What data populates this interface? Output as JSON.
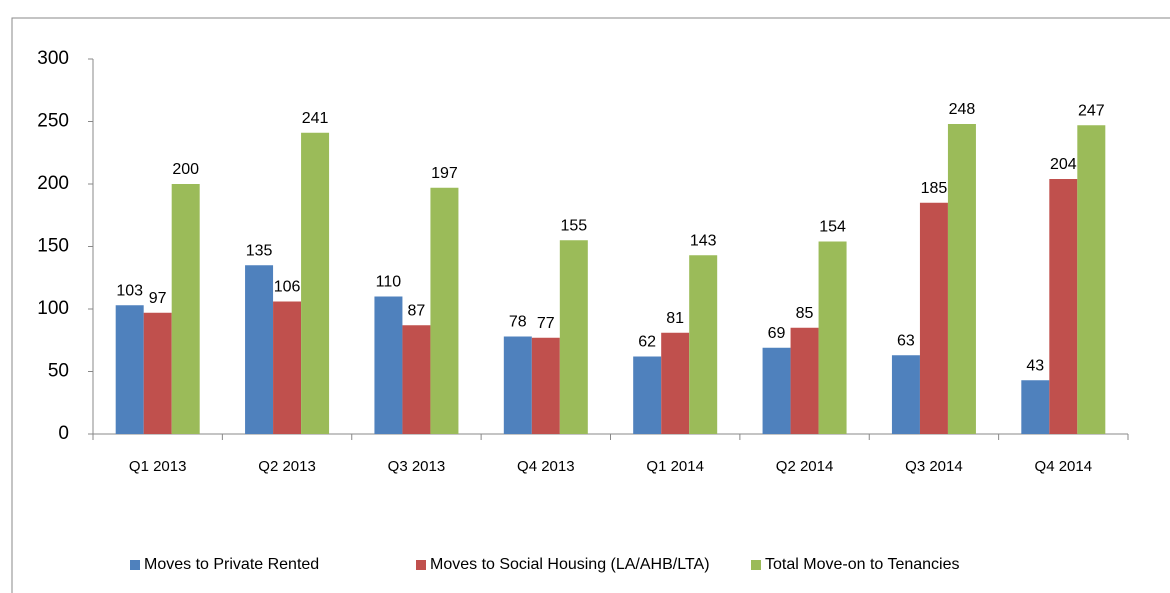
{
  "chart_data": {
    "type": "bar",
    "categories": [
      "Q1 2013",
      "Q2 2013",
      "Q3 2013",
      "Q4 2013",
      "Q1 2014",
      "Q2 2014",
      "Q3 2014",
      "Q4 2014"
    ],
    "series": [
      {
        "name": "Moves to Private Rented",
        "color": "#4f81bd",
        "values": [
          103,
          135,
          110,
          78,
          62,
          69,
          63,
          43
        ]
      },
      {
        "name": "Moves to Social Housing (LA/AHB/LTA)",
        "color": "#c0504d",
        "values": [
          97,
          106,
          87,
          77,
          81,
          85,
          185,
          204
        ]
      },
      {
        "name": "Total Move-on to Tenancies",
        "color": "#9bbb59",
        "values": [
          200,
          241,
          197,
          155,
          143,
          154,
          248,
          247
        ]
      }
    ],
    "ylim": [
      0,
      300
    ],
    "yticks": [
      0,
      50,
      100,
      150,
      200,
      250,
      300
    ],
    "grid": false,
    "legend": "bottom"
  }
}
